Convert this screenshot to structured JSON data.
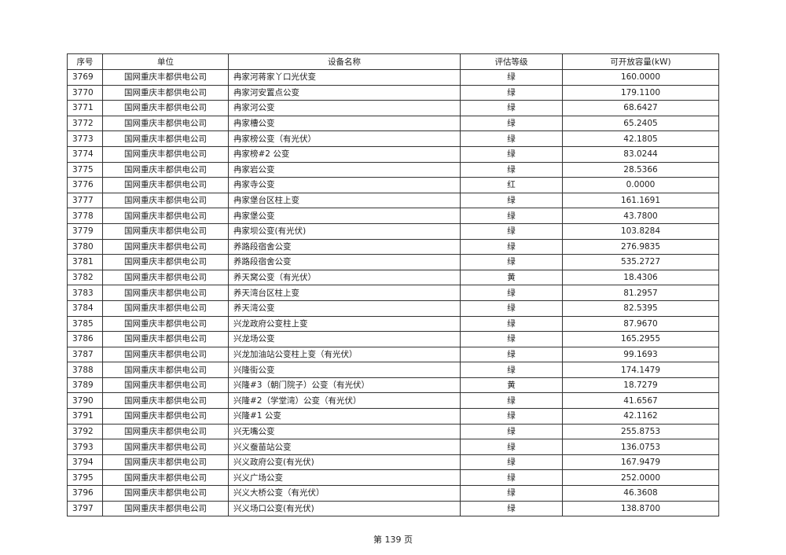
{
  "table": {
    "headers": [
      "序号",
      "单位",
      "设备名称",
      "评估等级",
      "可开放容量(kW)"
    ],
    "rows": [
      [
        "3769",
        "国网重庆丰都供电公司",
        "冉家河蒋家丫口光伏变",
        "绿",
        "160.0000"
      ],
      [
        "3770",
        "国网重庆丰都供电公司",
        "冉家河安置点公变",
        "绿",
        "179.1100"
      ],
      [
        "3771",
        "国网重庆丰都供电公司",
        "冉家河公变",
        "绿",
        "68.6427"
      ],
      [
        "3772",
        "国网重庆丰都供电公司",
        "冉家槽公变",
        "绿",
        "65.2405"
      ],
      [
        "3773",
        "国网重庆丰都供电公司",
        "冉家榜公变（有光伏）",
        "绿",
        "42.1805"
      ],
      [
        "3774",
        "国网重庆丰都供电公司",
        "冉家榜#2 公变",
        "绿",
        "83.0244"
      ],
      [
        "3775",
        "国网重庆丰都供电公司",
        "冉家岩公变",
        "绿",
        "28.5366"
      ],
      [
        "3776",
        "国网重庆丰都供电公司",
        "冉家寺公变",
        "红",
        "0.0000"
      ],
      [
        "3777",
        "国网重庆丰都供电公司",
        "冉家堡台区柱上变",
        "绿",
        "161.1691"
      ],
      [
        "3778",
        "国网重庆丰都供电公司",
        "冉家堡公变",
        "绿",
        "43.7800"
      ],
      [
        "3779",
        "国网重庆丰都供电公司",
        "冉家坝公变(有光伏)",
        "绿",
        "103.8284"
      ],
      [
        "3780",
        "国网重庆丰都供电公司",
        "养路段宿舍公变",
        "绿",
        "276.9835"
      ],
      [
        "3781",
        "国网重庆丰都供电公司",
        "养路段宿舍公变",
        "绿",
        "535.2727"
      ],
      [
        "3782",
        "国网重庆丰都供电公司",
        "养天窝公变（有光伏）",
        "黄",
        "18.4306"
      ],
      [
        "3783",
        "国网重庆丰都供电公司",
        "养天湾台区柱上变",
        "绿",
        "81.2957"
      ],
      [
        "3784",
        "国网重庆丰都供电公司",
        "养天湾公变",
        "绿",
        "82.5395"
      ],
      [
        "3785",
        "国网重庆丰都供电公司",
        "兴龙政府公变柱上变",
        "绿",
        "87.9670"
      ],
      [
        "3786",
        "国网重庆丰都供电公司",
        "兴龙场公变",
        "绿",
        "165.2955"
      ],
      [
        "3787",
        "国网重庆丰都供电公司",
        "兴龙加油站公变柱上变（有光伏）",
        "绿",
        "99.1693"
      ],
      [
        "3788",
        "国网重庆丰都供电公司",
        "兴隆街公变",
        "绿",
        "174.1479"
      ],
      [
        "3789",
        "国网重庆丰都供电公司",
        "兴隆#3（朝门院子）公变（有光伏）",
        "黄",
        "18.7279"
      ],
      [
        "3790",
        "国网重庆丰都供电公司",
        "兴隆#2（学堂湾）公变（有光伏）",
        "绿",
        "41.6567"
      ],
      [
        "3791",
        "国网重庆丰都供电公司",
        "兴隆#1 公变",
        "绿",
        "42.1162"
      ],
      [
        "3792",
        "国网重庆丰都供电公司",
        "兴无嘴公变",
        "绿",
        "255.8753"
      ],
      [
        "3793",
        "国网重庆丰都供电公司",
        "兴义蚕苗站公变",
        "绿",
        "136.0753"
      ],
      [
        "3794",
        "国网重庆丰都供电公司",
        "兴义政府公变(有光伏)",
        "绿",
        "167.9479"
      ],
      [
        "3795",
        "国网重庆丰都供电公司",
        "兴义广场公变",
        "绿",
        "252.0000"
      ],
      [
        "3796",
        "国网重庆丰都供电公司",
        "兴义大桥公变（有光伏）",
        "绿",
        "46.3608"
      ],
      [
        "3797",
        "国网重庆丰都供电公司",
        "兴义场口公变(有光伏)",
        "绿",
        "138.8700"
      ]
    ]
  },
  "footer": {
    "page_label": "第 139 页"
  }
}
